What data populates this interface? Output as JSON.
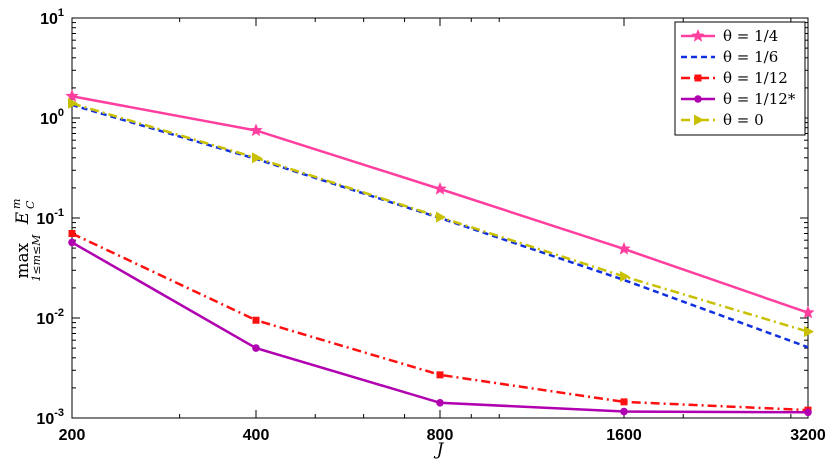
{
  "chart_data": {
    "type": "line",
    "x_scale": "log2",
    "y_scale": "log10",
    "x": [
      200,
      400,
      800,
      1600,
      3200
    ],
    "xlim": [
      200,
      3200
    ],
    "ylim": [
      0.001,
      10
    ],
    "x_tick_labels": [
      "200",
      "400",
      "800",
      "1600",
      "3200"
    ],
    "y_tick_labels": [
      {
        "base": "10",
        "exp": "-3",
        "value": 0.001
      },
      {
        "base": "10",
        "exp": "-2",
        "value": 0.01
      },
      {
        "base": "10",
        "exp": "-1",
        "value": 0.1
      },
      {
        "base": "10",
        "exp": "0",
        "value": 1
      },
      {
        "base": "10",
        "exp": "1",
        "value": 10
      }
    ],
    "xlabel": "J",
    "ylabel": "max_{1≤m≤M} E_C^m",
    "ylabel_parts": {
      "main": "max",
      "sub": "1≤m≤M",
      "var": "E",
      "var_sub": "C",
      "var_sup": "m"
    },
    "grid": false,
    "legend_position": "top-right",
    "series": [
      {
        "name": "θ = 1/4",
        "color": "#ff3fa0",
        "dash": "",
        "marker": "star",
        "values": [
          1.65,
          0.75,
          0.195,
          0.049,
          0.0113
        ]
      },
      {
        "name": "θ = 1/6",
        "color": "#1030e0",
        "dash": "6,4",
        "marker": "none",
        "values": [
          1.35,
          0.39,
          0.1,
          0.024,
          0.0051
        ]
      },
      {
        "name": "θ = 1/12",
        "color": "#ff1010",
        "dash": "9,4,2,4",
        "marker": "square",
        "values": [
          0.07,
          0.0095,
          0.0027,
          0.00145,
          0.0012
        ]
      },
      {
        "name": "θ = 1/12*",
        "color": "#b000b0",
        "dash": "",
        "marker": "circle",
        "values": [
          0.057,
          0.005,
          0.00142,
          0.00116,
          0.00114
        ]
      },
      {
        "name": "θ = 0",
        "color": "#c8c000",
        "dash": "9,4,2,4",
        "marker": "triangle",
        "values": [
          1.4,
          0.4,
          0.102,
          0.026,
          0.0073
        ]
      }
    ]
  }
}
